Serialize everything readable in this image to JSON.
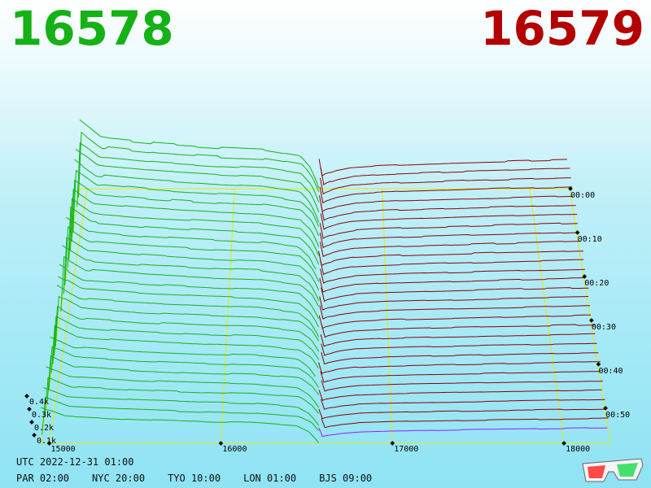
{
  "header": {
    "bid_value": "16578",
    "ask_value": "16579",
    "bid_color": "#16b116",
    "ask_color": "#b30000"
  },
  "footer": {
    "utc": "UTC 2022-12-31 01:00",
    "zones": [
      "PAR 02:00",
      "NYC 20:00",
      "TYO 10:00",
      "LON 01:00",
      "BJS 09:00"
    ]
  },
  "glasses_icon": "3d-glasses-icon",
  "chart_data": {
    "type": "area",
    "description_type": "3d-depth-chart-waterfall",
    "x_ticks": [
      "15000",
      "16000",
      "17000",
      "18000"
    ],
    "x_tick_values": [
      15000,
      16000,
      17000,
      18000
    ],
    "xlim": [
      14950,
      18270
    ],
    "y_ticks": [
      "0.1k",
      "0.2k",
      "0.3k",
      "0.4k"
    ],
    "y_tick_values": [
      100,
      200,
      300,
      400
    ],
    "time_ticks": [
      "00:00",
      "00:10",
      "00:20",
      "00:30",
      "00:40",
      "00:50"
    ],
    "time_tick_rows": [
      0,
      5,
      10,
      15,
      20,
      25
    ],
    "bid_color": "#13b413",
    "ask_color": "#8b0000",
    "current_ask_color": "#9a1aff",
    "grid_color": "#e6e61a",
    "mid_price": 16578.5,
    "bid_depth_profile": [
      [
        14950,
        350
      ],
      [
        15100,
        260
      ],
      [
        15500,
        230
      ],
      [
        15900,
        210
      ],
      [
        16200,
        200
      ],
      [
        16450,
        170
      ],
      [
        16520,
        110
      ],
      [
        16560,
        40
      ],
      [
        16578,
        0
      ]
    ],
    "ask_depth_profile": [
      [
        16579,
        0
      ],
      [
        16600,
        70
      ],
      [
        16700,
        95
      ],
      [
        16800,
        110
      ],
      [
        17000,
        120
      ],
      [
        17400,
        130
      ],
      [
        17800,
        140
      ],
      [
        18270,
        150
      ]
    ],
    "rows": 30
  }
}
